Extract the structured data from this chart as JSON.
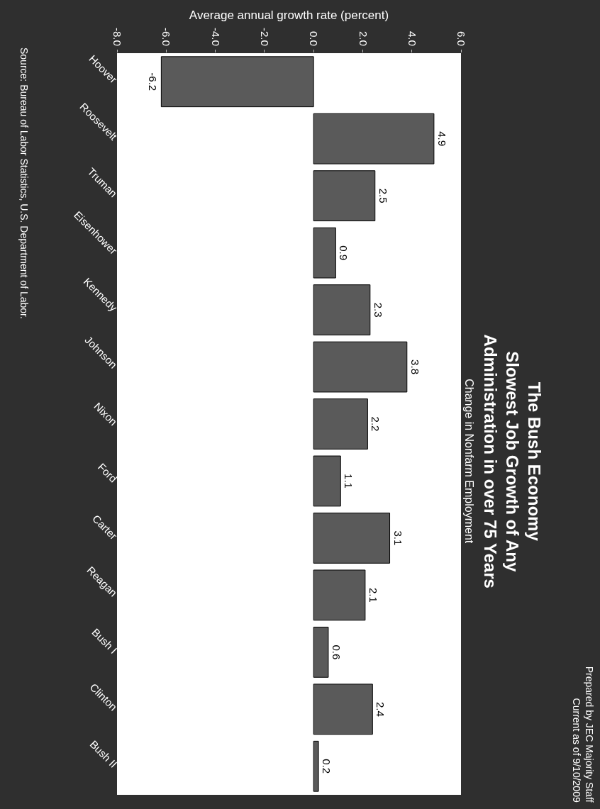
{
  "chart_data": {
    "type": "bar",
    "orientation": "horizontal",
    "title": "The Bush Economy\nSlowest Job Growth of Any\nAdministration in over 75 Years",
    "subtitle": "Change in Nonfarm Employment",
    "xlabel": "Average annual growth rate (percent)",
    "categories": [
      "Hoover",
      "Roosevelt",
      "Truman",
      "Eisenhower",
      "Kennedy",
      "Johnson",
      "Nixon",
      "Ford",
      "Carter",
      "Reagan",
      "Bush I",
      "Clinton",
      "Bush II"
    ],
    "values": [
      -6.2,
      4.9,
      2.5,
      0.9,
      2.3,
      3.8,
      2.2,
      1.1,
      3.1,
      2.1,
      0.6,
      2.4,
      0.2
    ],
    "color": "#5a5a5a",
    "xlim": [
      -8,
      6
    ],
    "xticks": [
      {
        "value": -8,
        "label": "-8.0"
      },
      {
        "value": -6,
        "label": "-6.0"
      },
      {
        "value": -4,
        "label": "-4.0"
      },
      {
        "value": -2,
        "label": "-2.0"
      },
      {
        "value": 0,
        "label": "0.0"
      },
      {
        "value": 2,
        "label": "2.0"
      },
      {
        "value": 4,
        "label": "4.0"
      },
      {
        "value": 6,
        "label": "6.0"
      }
    ],
    "data_labels": true,
    "annotations": [
      "Source: Bureau of Labor Statistics, U.S. Department of Labor.",
      "Prepared by JEC Majority Staff",
      "Current as of 9/10/2009"
    ]
  }
}
